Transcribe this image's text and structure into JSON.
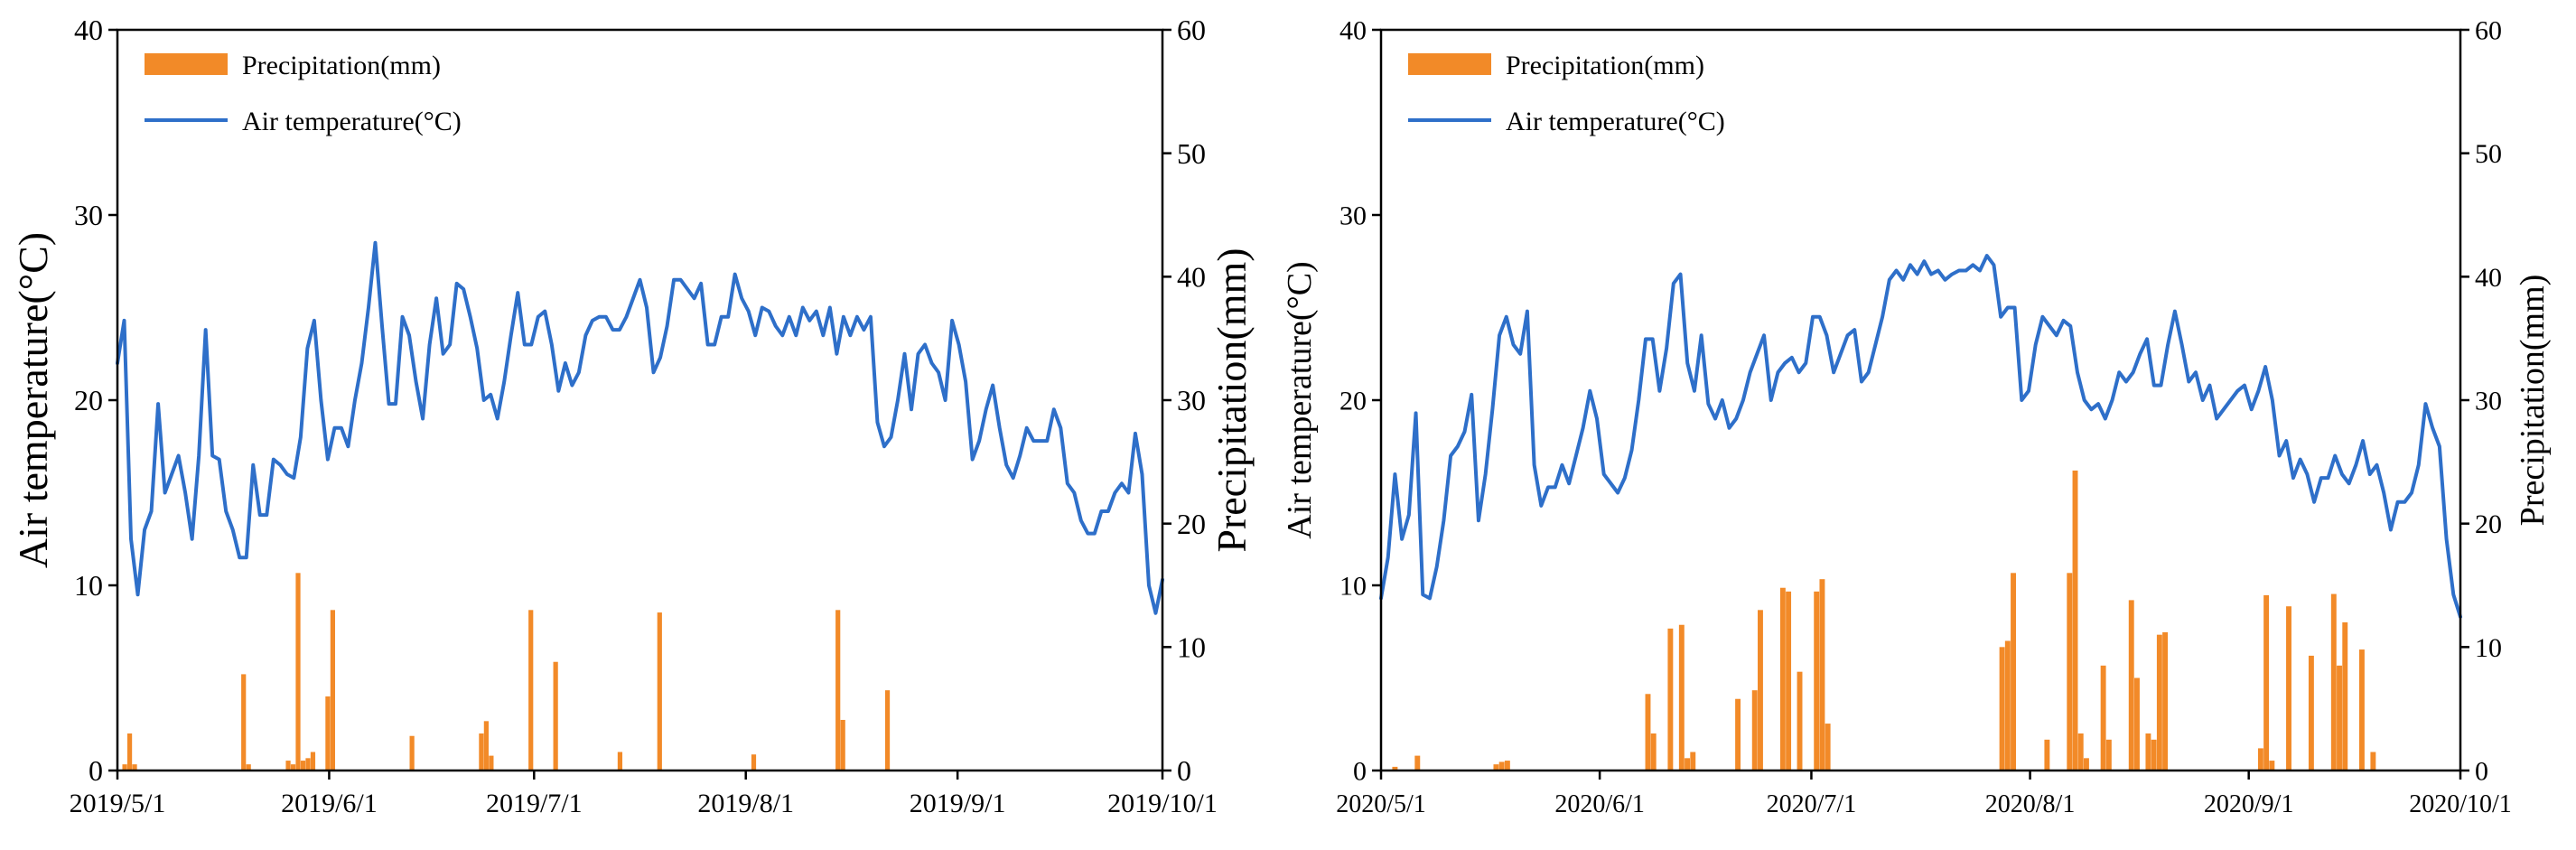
{
  "colors": {
    "precip": "#F28A28",
    "temp": "#2E6FC9",
    "axis": "#000000"
  },
  "chart_data": [
    {
      "type": "bar+line",
      "panel": "2019",
      "xlabels": [
        "2019/5/1",
        "2019/6/1",
        "2019/7/1",
        "2019/8/1",
        "2019/9/1",
        "2019/10/1"
      ],
      "x_start": "2019/5/1",
      "x_end": "2019/10/1",
      "ylabel_left": "Air temperature(°C)",
      "ylabel_right": "Precipitation(mm)",
      "ylim_left": [
        0,
        40
      ],
      "ylim_right": [
        0,
        60
      ],
      "yticks_left": [
        "0",
        "10",
        "20",
        "30",
        "40"
      ],
      "yticks_right": [
        "0",
        "10",
        "20",
        "30",
        "40",
        "50",
        "60"
      ],
      "grid": false,
      "legend_position": "top-left",
      "legend": {
        "precip": "Precipitation(mm)",
        "temp": "Air temperature(°C)"
      },
      "series": [
        {
          "name": "Air temperature(°C)",
          "type": "line",
          "axis": "left",
          "values": [
            22.0,
            24.3,
            12.5,
            9.5,
            13.0,
            14.0,
            19.8,
            15.0,
            16.0,
            17.0,
            15.0,
            12.5,
            17.0,
            23.8,
            17.0,
            16.8,
            14.0,
            13.0,
            11.5,
            11.5,
            16.5,
            13.8,
            13.8,
            16.8,
            16.5,
            16.0,
            15.8,
            18.0,
            22.8,
            24.3,
            20.0,
            16.8,
            18.5,
            18.5,
            17.5,
            20.0,
            22.0,
            25.0,
            28.5,
            24.0,
            19.8,
            19.8,
            24.5,
            23.5,
            21.0,
            19.0,
            23.0,
            25.5,
            22.5,
            23.0,
            26.3,
            26.0,
            24.5,
            22.8,
            20.0,
            20.3,
            19.0,
            21.0,
            23.5,
            25.8,
            23.0,
            23.0,
            24.5,
            24.8,
            23.0,
            20.5,
            22.0,
            20.8,
            21.5,
            23.5,
            24.3,
            24.5,
            24.5,
            23.8,
            23.8,
            24.5,
            25.5,
            26.5,
            25.0,
            21.5,
            22.3,
            24.0,
            26.5,
            26.5,
            26.0,
            25.5,
            26.3,
            23.0,
            23.0,
            24.5,
            24.5,
            26.8,
            25.5,
            24.8,
            23.5,
            25.0,
            24.8,
            24.0,
            23.5,
            24.5,
            23.5,
            25.0,
            24.3,
            24.8,
            23.5,
            25.0,
            22.5,
            24.5,
            23.5,
            24.5,
            23.8,
            24.5,
            18.8,
            17.5,
            18.0,
            20.0,
            22.5,
            19.5,
            22.5,
            23.0,
            22.0,
            21.5,
            20.0,
            24.3,
            23.0,
            21.0,
            16.8,
            17.8,
            19.5,
            20.8,
            18.5,
            16.5,
            15.8,
            17.0,
            18.5,
            17.8,
            17.8,
            17.8,
            19.5,
            18.5,
            15.5,
            15.0,
            13.5,
            12.8,
            12.8,
            14.0,
            14.0,
            15.0,
            15.5,
            15.0,
            18.2,
            16.0,
            10.0,
            8.5,
            10.3
          ]
        },
        {
          "name": "Precipitation(mm)",
          "type": "bar",
          "axis": "right",
          "values": [
            0,
            0.5,
            3.0,
            0.5,
            0,
            0,
            0,
            0,
            0,
            0,
            0,
            0,
            0,
            0,
            0,
            0,
            0,
            0,
            0,
            0,
            0,
            0,
            0,
            0,
            0,
            7.8,
            0.5,
            0,
            0,
            0,
            0,
            0,
            0,
            0,
            0.8,
            0.5,
            16.0,
            0.8,
            1.0,
            1.5,
            0,
            0,
            6.0,
            13.0,
            0,
            0,
            0,
            0,
            0,
            0,
            0,
            0,
            0,
            0,
            0,
            0,
            0,
            0,
            0,
            2.8,
            0,
            0,
            0,
            0,
            0,
            0,
            0,
            0,
            0,
            0,
            0,
            0,
            0,
            3.0,
            4.0,
            1.2,
            0,
            0,
            0,
            0,
            0,
            0,
            0,
            13.0,
            0,
            0,
            0,
            0,
            8.8,
            0,
            0,
            0,
            0,
            0,
            0,
            0,
            0,
            0,
            0,
            0,
            0,
            1.5,
            0,
            0,
            0,
            0,
            0,
            0,
            0,
            12.8,
            0,
            0,
            0,
            0,
            0,
            0,
            0,
            0,
            0,
            0,
            0,
            0,
            0,
            0,
            0,
            0,
            0,
            0,
            1.3,
            0,
            0,
            0,
            0,
            0,
            0,
            0,
            0,
            0,
            0,
            0,
            0,
            0,
            0,
            0,
            0,
            13.0,
            4.1,
            0,
            0,
            0,
            0,
            0,
            0,
            0,
            0,
            6.5,
            0,
            0,
            0,
            0,
            0,
            0,
            0,
            0,
            0,
            0,
            0,
            0,
            0,
            0,
            0,
            0,
            0,
            0,
            0,
            0,
            0,
            0,
            0,
            0,
            0,
            0,
            0,
            0,
            0,
            0,
            0,
            0,
            0,
            0,
            0,
            0,
            0,
            0,
            0,
            0,
            0,
            0,
            0,
            0,
            0,
            0,
            0,
            0,
            0,
            0,
            0,
            0,
            0,
            0,
            0
          ]
        }
      ]
    },
    {
      "type": "bar+line",
      "panel": "2020",
      "xlabels": [
        "2020/5/1",
        "2020/6/1",
        "2020/7/1",
        "2020/8/1",
        "2020/9/1",
        "2020/10/1"
      ],
      "x_start": "2020/5/1",
      "x_end": "2020/10/1",
      "ylabel_left": "Air temperature(°C)",
      "ylabel_right": "Precipitation(mm)",
      "ylim_left": [
        0,
        40
      ],
      "ylim_right": [
        0,
        60
      ],
      "yticks_left": [
        "0",
        "10",
        "20",
        "30",
        "40"
      ],
      "yticks_right": [
        "0",
        "10",
        "20",
        "30",
        "40",
        "50",
        "60"
      ],
      "grid": false,
      "legend_position": "top-left",
      "legend": {
        "precip": "Precipitation(mm)",
        "temp": "Air temperature(°C)"
      },
      "series": [
        {
          "name": "Air temperature(°C)",
          "type": "line",
          "axis": "left",
          "values": [
            9.3,
            11.5,
            16.0,
            12.5,
            13.8,
            19.3,
            9.5,
            9.3,
            11.0,
            13.5,
            17.0,
            17.5,
            18.3,
            20.3,
            13.5,
            16.0,
            19.5,
            23.5,
            24.5,
            23.0,
            22.5,
            24.8,
            16.5,
            14.3,
            15.3,
            15.3,
            16.5,
            15.5,
            17.0,
            18.5,
            20.5,
            19.0,
            16.0,
            15.5,
            15.0,
            15.8,
            17.3,
            20.0,
            23.3,
            23.3,
            20.5,
            22.8,
            26.3,
            26.8,
            22.0,
            20.5,
            23.5,
            19.8,
            19.0,
            20.0,
            18.5,
            19.0,
            20.0,
            21.5,
            22.5,
            23.5,
            20.0,
            21.5,
            22.0,
            22.3,
            21.5,
            22.0,
            24.5,
            24.5,
            23.5,
            21.5,
            22.5,
            23.5,
            23.8,
            21.0,
            21.5,
            23.0,
            24.5,
            26.5,
            27.0,
            26.5,
            27.3,
            26.8,
            27.5,
            26.8,
            27.0,
            26.5,
            26.8,
            27.0,
            27.0,
            27.3,
            27.0,
            27.8,
            27.3,
            24.5,
            25.0,
            25.0,
            20.0,
            20.5,
            23.0,
            24.5,
            24.0,
            23.5,
            24.3,
            24.0,
            21.5,
            20.0,
            19.5,
            19.8,
            19.0,
            20.0,
            21.5,
            21.0,
            21.5,
            22.5,
            23.3,
            20.8,
            20.8,
            23.0,
            24.8,
            23.0,
            21.0,
            21.5,
            20.0,
            20.8,
            19.0,
            19.5,
            20.0,
            20.5,
            20.8,
            19.5,
            20.5,
            21.8,
            20.0,
            17.0,
            17.8,
            15.8,
            16.8,
            16.0,
            14.5,
            15.8,
            15.8,
            17.0,
            16.0,
            15.5,
            16.5,
            17.8,
            16.0,
            16.5,
            15.0,
            13.0,
            14.5,
            14.5,
            15.0,
            16.5,
            19.8,
            18.5,
            17.5,
            12.5,
            9.5,
            8.3
          ]
        },
        {
          "name": "Precipitation(mm)",
          "type": "bar",
          "axis": "right",
          "values": [
            0,
            0,
            0.3,
            0,
            0,
            0,
            1.2,
            0,
            0,
            0,
            0,
            0,
            0,
            0,
            0,
            0,
            0,
            0,
            0,
            0,
            0.5,
            0.7,
            0.8,
            0,
            0,
            0,
            0,
            0,
            0,
            0,
            0,
            0,
            0,
            0,
            0,
            0,
            0,
            0,
            0,
            0,
            0,
            0,
            0,
            0,
            0,
            0,
            0,
            6.2,
            3.0,
            0,
            0,
            11.5,
            0,
            11.8,
            1.0,
            1.5,
            0,
            0,
            0,
            0,
            0,
            0,
            0,
            5.8,
            0,
            0,
            6.5,
            13.0,
            0,
            0,
            0,
            14.8,
            14.5,
            0,
            8.0,
            0,
            0,
            14.5,
            15.5,
            3.8,
            0,
            0,
            0,
            0,
            0,
            0,
            0,
            0,
            0,
            0,
            0,
            0,
            0,
            0,
            0,
            0,
            0,
            0,
            0,
            0,
            0,
            0,
            0,
            0,
            0,
            0,
            0,
            0,
            0,
            0,
            10.0,
            10.5,
            16.0,
            0,
            0,
            0,
            0,
            0,
            2.5,
            0,
            0,
            0,
            16.0,
            24.3,
            3.0,
            1.0,
            0,
            0,
            8.5,
            2.5,
            0,
            0,
            0,
            13.8,
            7.5,
            0,
            3.0,
            2.5,
            11.0,
            11.2,
            0,
            0,
            0,
            0,
            0,
            0,
            0,
            0,
            0,
            0,
            0,
            0,
            0,
            0,
            0,
            0,
            1.8,
            14.2,
            0.8,
            0,
            0,
            13.3,
            0,
            0,
            0,
            9.3,
            0,
            0,
            0,
            14.3,
            8.5,
            12.0,
            0,
            0,
            9.8,
            0,
            1.5,
            0,
            0,
            0,
            0,
            0,
            0,
            0,
            0,
            0,
            0,
            0,
            0,
            0,
            0,
            0
          ]
        }
      ]
    }
  ]
}
